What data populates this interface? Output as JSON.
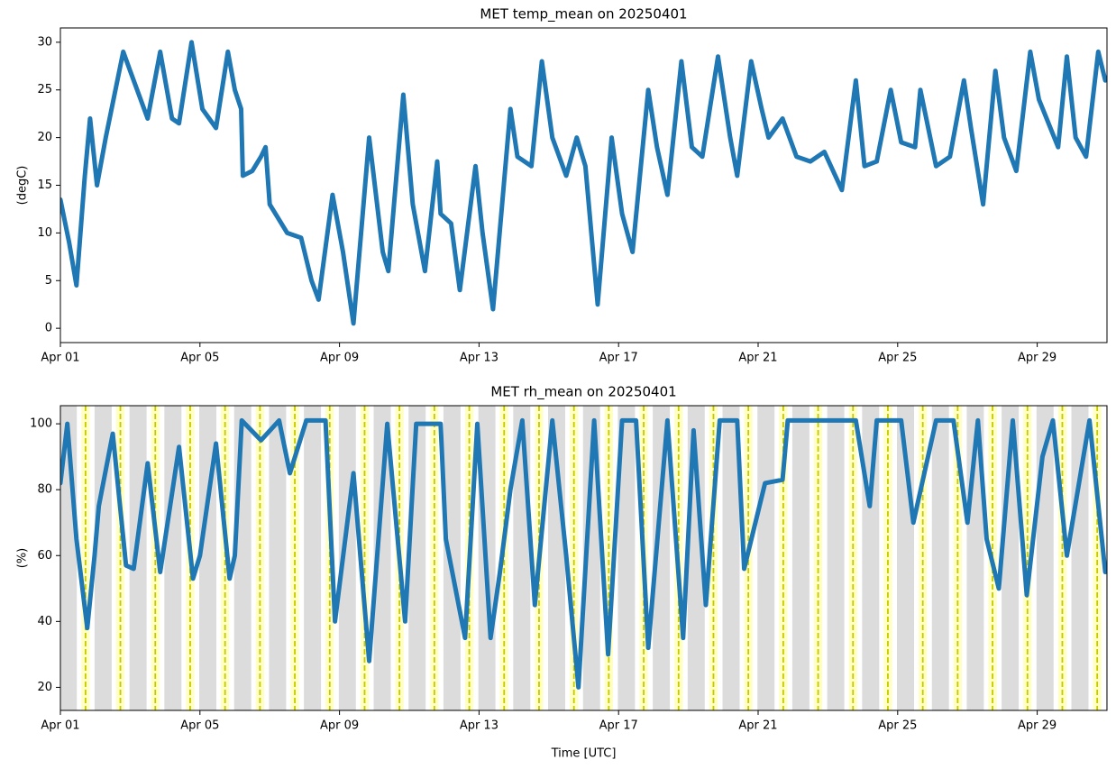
{
  "chart_data": [
    {
      "type": "line",
      "title": "MET temp_mean on 20250401",
      "y_label": "(degC)",
      "xlim": [
        0,
        30
      ],
      "ylim": [
        -1.5,
        31.5
      ],
      "xticks": [
        {
          "value": 0,
          "label": "Apr 01"
        },
        {
          "value": 4,
          "label": "Apr 05"
        },
        {
          "value": 8,
          "label": "Apr 09"
        },
        {
          "value": 12,
          "label": "Apr 13"
        },
        {
          "value": 16,
          "label": "Apr 17"
        },
        {
          "value": 20,
          "label": "Apr 21"
        },
        {
          "value": 24,
          "label": "Apr 25"
        },
        {
          "value": 28,
          "label": "Apr 29"
        }
      ],
      "yticks": [
        0,
        5,
        10,
        15,
        20,
        25,
        30
      ],
      "color": "#1f77b4",
      "x": [
        0,
        0.25,
        0.46,
        0.7,
        0.85,
        1.05,
        1.3,
        1.8,
        2.0,
        2.4,
        2.5,
        2.86,
        3.2,
        3.4,
        3.76,
        4.07,
        4.46,
        4.8,
        5.0,
        5.18,
        5.23,
        5.5,
        5.75,
        5.88,
        6.0,
        6.5,
        6.9,
        7.2,
        7.4,
        7.8,
        8.1,
        8.4,
        8.85,
        9.24,
        9.4,
        9.83,
        10.1,
        10.45,
        10.8,
        10.9,
        11.2,
        11.45,
        11.9,
        12.1,
        12.4,
        12.9,
        13.1,
        13.5,
        13.8,
        14.1,
        14.5,
        14.8,
        15.05,
        15.4,
        15.8,
        16.1,
        16.4,
        16.85,
        17.1,
        17.4,
        17.8,
        18.1,
        18.4,
        18.85,
        19.2,
        19.4,
        19.8,
        20.1,
        20.3,
        20.7,
        21.1,
        21.5,
        21.9,
        22.4,
        22.8,
        23.05,
        23.4,
        23.8,
        24.1,
        24.5,
        24.65,
        25.1,
        25.5,
        25.9,
        26.1,
        26.45,
        26.8,
        27.05,
        27.4,
        27.8,
        28.05,
        28.6,
        28.85,
        29.1,
        29.4,
        29.75,
        29.95
      ],
      "values": [
        13.5,
        9,
        4.5,
        16,
        22,
        15,
        20,
        29,
        27,
        23,
        22,
        29,
        22,
        21.5,
        30,
        23,
        21,
        29,
        25,
        23,
        16,
        16.5,
        18,
        19,
        13,
        10,
        9.5,
        5,
        3,
        14,
        8,
        0.5,
        20,
        8,
        6,
        24.5,
        13,
        6,
        17.5,
        12,
        11,
        4,
        17,
        10,
        2,
        23,
        18,
        17,
        28,
        20,
        16,
        20,
        17,
        2.5,
        20,
        12,
        8,
        25,
        19,
        14,
        28,
        19,
        18,
        28.5,
        20,
        16,
        28,
        23,
        20,
        22,
        18,
        17.5,
        18.5,
        14.5,
        26,
        17,
        17.5,
        25,
        19.5,
        19,
        25,
        17,
        18,
        26,
        21,
        13,
        27,
        20,
        16.5,
        29,
        24,
        19,
        28.5,
        20,
        18,
        29,
        26
      ]
    },
    {
      "type": "line",
      "title": "MET rh_mean on 20250401",
      "y_label": "(%)",
      "x_label": "Time [UTC]",
      "xlim": [
        0,
        30
      ],
      "ylim": [
        13,
        105.5
      ],
      "xticks": [
        {
          "value": 0,
          "label": "Apr 01"
        },
        {
          "value": 4,
          "label": "Apr 05"
        },
        {
          "value": 8,
          "label": "Apr 09"
        },
        {
          "value": 12,
          "label": "Apr 13"
        },
        {
          "value": 16,
          "label": "Apr 17"
        },
        {
          "value": 20,
          "label": "Apr 21"
        },
        {
          "value": 24,
          "label": "Apr 25"
        },
        {
          "value": 28,
          "label": "Apr 29"
        }
      ],
      "yticks": [
        20,
        40,
        60,
        80,
        100
      ],
      "color": "#1f77b4",
      "shading": {
        "night": [
          -0.02,
          0.47
        ],
        "night_color": "#dcdcdc",
        "day": [
          0.6,
          0.84
        ],
        "day_color": "#ffffc4",
        "noon": 0.72,
        "noon_color": "#c8c800"
      },
      "x": [
        0,
        0.2,
        0.46,
        0.77,
        0.98,
        1.1,
        1.5,
        1.88,
        2.1,
        2.5,
        2.86,
        3.4,
        3.8,
        4.0,
        4.46,
        4.85,
        5.0,
        5.2,
        5.75,
        6.27,
        6.58,
        7.05,
        7.6,
        7.87,
        8.4,
        8.85,
        9.37,
        9.88,
        10.2,
        10.9,
        11.05,
        11.6,
        11.95,
        12.33,
        12.6,
        12.9,
        13.24,
        13.6,
        14.1,
        14.5,
        14.85,
        15.3,
        15.7,
        16.1,
        16.5,
        16.85,
        17.4,
        17.85,
        18.15,
        18.5,
        18.9,
        19.4,
        19.6,
        20.2,
        20.7,
        20.85,
        22.8,
        23.2,
        23.4,
        24.1,
        24.45,
        25.1,
        25.6,
        26.0,
        26.3,
        26.55,
        26.9,
        27.3,
        27.7,
        28.15,
        28.45,
        28.85,
        29.5,
        29.95
      ],
      "values": [
        82,
        100,
        65,
        38,
        60,
        75,
        97,
        57,
        56,
        88,
        55,
        93,
        53,
        60,
        94,
        53,
        60,
        101,
        95,
        101,
        85,
        101,
        101,
        40,
        85,
        28,
        100,
        40,
        100,
        100,
        65,
        35,
        100,
        35,
        55,
        80,
        101,
        45,
        101,
        60,
        20,
        101,
        30,
        101,
        101,
        32,
        101,
        35,
        98,
        45,
        101,
        101,
        56,
        82,
        83,
        101,
        101,
        75,
        101,
        101,
        70,
        101,
        101,
        70,
        101,
        65,
        50,
        101,
        48,
        90,
        101,
        60,
        101,
        55
      ]
    }
  ]
}
